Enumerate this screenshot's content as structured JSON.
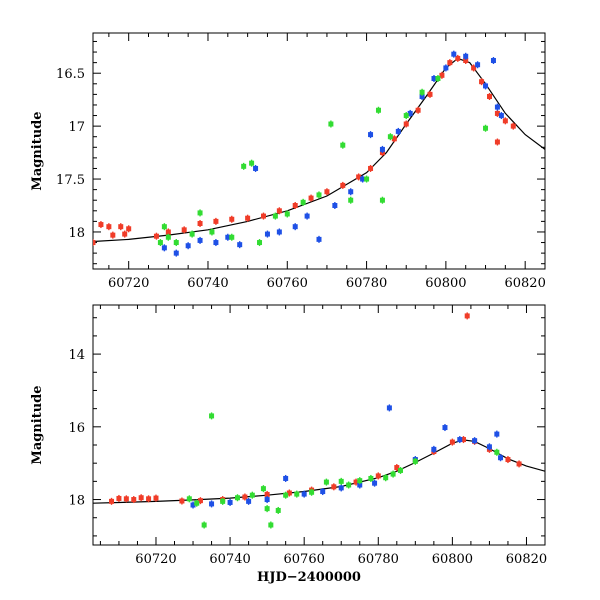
{
  "chart_data": [
    {
      "type": "scatter",
      "title": "",
      "xlabel": "",
      "ylabel": "Magnitude",
      "xlim": [
        60711,
        60825
      ],
      "ylim": [
        18.35,
        16.12
      ],
      "y_inverted": true,
      "x_ticks": [
        60720,
        60740,
        60760,
        60780,
        60800,
        60820
      ],
      "x_tick_labels": [
        "60720",
        "60740",
        "60760",
        "60780",
        "60800",
        "60820"
      ],
      "y_ticks": [
        16.5,
        17,
        17.5,
        18
      ],
      "y_tick_labels": [
        "16.5",
        "17",
        "17.5",
        "18"
      ],
      "grid": false,
      "series": [
        {
          "color": "#f03c28",
          "points": [
            [
              60711,
              18.1
            ],
            [
              60713,
              17.93
            ],
            [
              60715,
              17.95
            ],
            [
              60716,
              18.03
            ],
            [
              60718,
              17.95
            ],
            [
              60719,
              18.02
            ],
            [
              60720,
              17.97
            ],
            [
              60727,
              18.04
            ],
            [
              60730,
              18.0
            ],
            [
              60734,
              17.98
            ],
            [
              60738,
              17.92
            ],
            [
              60742,
              17.9
            ],
            [
              60746,
              17.88
            ],
            [
              60750,
              17.87
            ],
            [
              60754,
              17.85
            ],
            [
              60758,
              17.8
            ],
            [
              60762,
              17.75
            ],
            [
              60766,
              17.68
            ],
            [
              60770,
              17.62
            ],
            [
              60774,
              17.56
            ],
            [
              60778,
              17.48
            ],
            [
              60781,
              17.4
            ],
            [
              60784,
              17.25
            ],
            [
              60787,
              17.12
            ],
            [
              60790,
              16.98
            ],
            [
              60793,
              16.85
            ],
            [
              60796,
              16.7
            ],
            [
              60799,
              16.52
            ],
            [
              60801,
              16.4
            ],
            [
              60803,
              16.36
            ],
            [
              60805,
              16.38
            ],
            [
              60807,
              16.45
            ],
            [
              60809,
              16.58
            ],
            [
              60811,
              16.72
            ],
            [
              60813,
              16.88
            ],
            [
              60815,
              16.95
            ],
            [
              60817,
              17.0
            ],
            [
              60813,
              17.15
            ]
          ]
        },
        {
          "color": "#1e50e6",
          "points": [
            [
              60729,
              18.15
            ],
            [
              60732,
              18.2
            ],
            [
              60735,
              18.13
            ],
            [
              60738,
              18.08
            ],
            [
              60742,
              18.1
            ],
            [
              60745,
              18.05
            ],
            [
              60748,
              18.12
            ],
            [
              60752,
              17.4
            ],
            [
              60755,
              18.02
            ],
            [
              60758,
              18.0
            ],
            [
              60762,
              17.95
            ],
            [
              60765,
              17.85
            ],
            [
              60768,
              18.07
            ],
            [
              60772,
              17.75
            ],
            [
              60776,
              17.62
            ],
            [
              60779,
              17.5
            ],
            [
              60781,
              17.08
            ],
            [
              60784,
              17.22
            ],
            [
              60788,
              17.05
            ],
            [
              60791,
              16.88
            ],
            [
              60794,
              16.72
            ],
            [
              60797,
              16.55
            ],
            [
              60800,
              16.45
            ],
            [
              60802,
              16.32
            ],
            [
              60805,
              16.34
            ],
            [
              60808,
              16.42
            ],
            [
              60810,
              16.62
            ],
            [
              60812,
              16.38
            ],
            [
              60813,
              16.82
            ],
            [
              60814,
              16.9
            ]
          ]
        },
        {
          "color": "#32dc32",
          "points": [
            [
              60728,
              18.1
            ],
            [
              60729,
              17.95
            ],
            [
              60730,
              18.05
            ],
            [
              60732,
              18.1
            ],
            [
              60736,
              18.02
            ],
            [
              60738,
              17.82
            ],
            [
              60741,
              18.0
            ],
            [
              60746,
              18.05
            ],
            [
              60749,
              17.38
            ],
            [
              60751,
              17.35
            ],
            [
              60753,
              18.1
            ],
            [
              60757,
              17.85
            ],
            [
              60760,
              17.83
            ],
            [
              60764,
              17.72
            ],
            [
              60768,
              17.65
            ],
            [
              60771,
              16.98
            ],
            [
              60774,
              17.18
            ],
            [
              60776,
              17.7
            ],
            [
              60780,
              17.5
            ],
            [
              60783,
              16.85
            ],
            [
              60784,
              17.7
            ],
            [
              60786,
              17.1
            ],
            [
              60790,
              16.9
            ],
            [
              60794,
              16.68
            ],
            [
              60798,
              16.55
            ],
            [
              60810,
              17.02
            ]
          ]
        }
      ],
      "model_curve": [
        [
          60711,
          18.09
        ],
        [
          60720,
          18.07
        ],
        [
          60730,
          18.03
        ],
        [
          60740,
          17.98
        ],
        [
          60750,
          17.9
        ],
        [
          60760,
          17.8
        ],
        [
          60770,
          17.66
        ],
        [
          60780,
          17.44
        ],
        [
          60785,
          17.25
        ],
        [
          60790,
          16.98
        ],
        [
          60795,
          16.72
        ],
        [
          60800,
          16.45
        ],
        [
          60803,
          16.36
        ],
        [
          60806,
          16.4
        ],
        [
          60810,
          16.6
        ],
        [
          60815,
          16.88
        ],
        [
          60820,
          17.08
        ],
        [
          60825,
          17.22
        ]
      ]
    },
    {
      "type": "scatter",
      "title": "",
      "xlabel": "HJD−2400000",
      "ylabel": "Magnitude",
      "xlim": [
        60703,
        60825
      ],
      "ylim": [
        19.25,
        12.65
      ],
      "y_inverted": true,
      "x_ticks": [
        60720,
        60740,
        60760,
        60780,
        60800,
        60820
      ],
      "x_tick_labels": [
        "60720",
        "60740",
        "60760",
        "60780",
        "60800",
        "60820"
      ],
      "y_ticks": [
        14,
        16,
        18
      ],
      "y_tick_labels": [
        "14",
        "16",
        "18"
      ],
      "grid": false,
      "series": [
        {
          "color": "#f03c28",
          "points": [
            [
              60708,
              18.05
            ],
            [
              60710,
              17.97
            ],
            [
              60712,
              17.98
            ],
            [
              60714,
              18.0
            ],
            [
              60716,
              17.95
            ],
            [
              60718,
              17.98
            ],
            [
              60720,
              17.96
            ],
            [
              60727,
              18.04
            ],
            [
              60732,
              18.03
            ],
            [
              60738,
              18.0
            ],
            [
              60744,
              17.93
            ],
            [
              60750,
              17.86
            ],
            [
              60756,
              17.82
            ],
            [
              60762,
              17.74
            ],
            [
              60768,
              17.65
            ],
            [
              60774,
              17.52
            ],
            [
              60780,
              17.35
            ],
            [
              60785,
              17.12
            ],
            [
              60790,
              16.92
            ],
            [
              60795,
              16.68
            ],
            [
              60800,
              16.42
            ],
            [
              60803,
              16.35
            ],
            [
              60804,
              12.95
            ],
            [
              60806,
              16.4
            ],
            [
              60810,
              16.62
            ],
            [
              60815,
              16.9
            ],
            [
              60818,
              17.02
            ]
          ]
        },
        {
          "color": "#1e50e6",
          "points": [
            [
              60730,
              18.15
            ],
            [
              60735,
              18.12
            ],
            [
              60740,
              18.08
            ],
            [
              60745,
              18.05
            ],
            [
              60750,
              18.0
            ],
            [
              60755,
              17.42
            ],
            [
              60760,
              17.85
            ],
            [
              60765,
              17.78
            ],
            [
              60770,
              17.68
            ],
            [
              60775,
              17.6
            ],
            [
              60779,
              17.55
            ],
            [
              60783,
              15.48
            ],
            [
              60790,
              16.9
            ],
            [
              60795,
              16.62
            ],
            [
              60798,
              16.02
            ],
            [
              60802,
              16.35
            ],
            [
              60806,
              16.38
            ],
            [
              60810,
              16.55
            ],
            [
              60812,
              16.2
            ],
            [
              60813,
              16.85
            ]
          ]
        },
        {
          "color": "#32dc32",
          "points": [
            [
              60729,
              17.98
            ],
            [
              60731,
              18.1
            ],
            [
              60733,
              18.7
            ],
            [
              60735,
              15.7
            ],
            [
              60738,
              18.05
            ],
            [
              60742,
              17.95
            ],
            [
              60746,
              17.88
            ],
            [
              60749,
              17.7
            ],
            [
              60750,
              18.25
            ],
            [
              60751,
              18.7
            ],
            [
              60753,
              18.3
            ],
            [
              60755,
              17.88
            ],
            [
              60758,
              17.85
            ],
            [
              60762,
              17.8
            ],
            [
              60766,
              17.52
            ],
            [
              60770,
              17.5
            ],
            [
              60772,
              17.6
            ],
            [
              60775,
              17.48
            ],
            [
              60778,
              17.42
            ],
            [
              60782,
              17.4
            ],
            [
              60784,
              17.3
            ],
            [
              60786,
              17.2
            ],
            [
              60790,
              16.95
            ],
            [
              60812,
              16.7
            ]
          ]
        }
      ],
      "model_curve": [
        [
          60703,
          18.1
        ],
        [
          60710,
          18.08
        ],
        [
          60720,
          18.05
        ],
        [
          60730,
          18.01
        ],
        [
          60740,
          17.96
        ],
        [
          60750,
          17.88
        ],
        [
          60760,
          17.78
        ],
        [
          60770,
          17.64
        ],
        [
          60780,
          17.4
        ],
        [
          60785,
          17.22
        ],
        [
          60790,
          16.98
        ],
        [
          60795,
          16.72
        ],
        [
          60800,
          16.45
        ],
        [
          60803,
          16.36
        ],
        [
          60806,
          16.4
        ],
        [
          60810,
          16.6
        ],
        [
          60815,
          16.88
        ],
        [
          60820,
          17.08
        ],
        [
          60825,
          17.22
        ]
      ]
    }
  ]
}
